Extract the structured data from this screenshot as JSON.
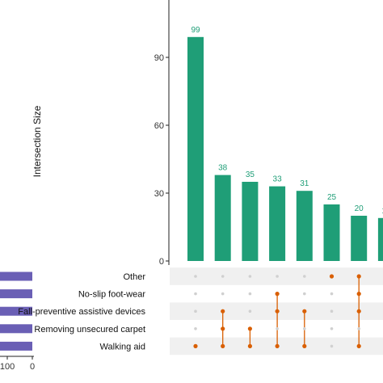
{
  "chart_data": {
    "type": "upset",
    "ylabel": "Intersection Size",
    "ylim": [
      0,
      110
    ],
    "yticks": [
      0,
      30,
      60,
      90
    ],
    "bar_color": "#1f9e77",
    "dot_color": "#d95f02",
    "set_bar_color": "#6a5fb5",
    "intersections": [
      {
        "value": 99,
        "sets": [
          "Walking aid"
        ]
      },
      {
        "value": 38,
        "sets": [
          "Walking aid",
          "Removing unsecured carpet",
          "Fall-preventive assistive devices"
        ]
      },
      {
        "value": 35,
        "sets": [
          "Walking aid",
          "Removing unsecured carpet"
        ]
      },
      {
        "value": 33,
        "sets": [
          "Walking aid",
          "Fall-preventive assistive devices",
          "No-slip foot-wear"
        ]
      },
      {
        "value": 31,
        "sets": [
          "Walking aid",
          "Fall-preventive assistive devices"
        ]
      },
      {
        "value": 25,
        "sets": [
          "Other"
        ]
      },
      {
        "value": 20,
        "sets": [
          "Walking aid",
          "Fall-preventive assistive devices",
          "No-slip foot-wear",
          "Other"
        ]
      },
      {
        "value": 19,
        "sets": []
      }
    ],
    "sets": [
      "Other",
      "No-slip foot-wear",
      "Fall-preventive assistive devices",
      "Removing unsecured carpet",
      "Walking aid"
    ],
    "set_size_ticks": [
      "100",
      "0"
    ]
  }
}
